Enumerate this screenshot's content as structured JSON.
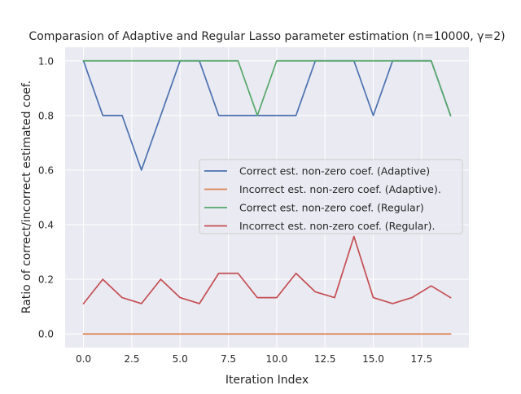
{
  "chart_data": {
    "type": "line",
    "title": "Comparasion of Adaptive and Regular Lasso parameter estimation (n=10000, γ=2)",
    "xlabel": "Iteration Index",
    "ylabel": "Ratio of correct/incorrect estimated coef.",
    "xlim": [
      -0.95,
      19.95
    ],
    "ylim": [
      -0.05,
      1.05
    ],
    "x_ticks": [
      0,
      2.5,
      5,
      7.5,
      10,
      12.5,
      15,
      17.5
    ],
    "x_tick_labels": [
      "0.0",
      "2.5",
      "5.0",
      "7.5",
      "10.0",
      "12.5",
      "15.0",
      "17.5"
    ],
    "y_ticks": [
      0,
      0.2,
      0.4,
      0.6,
      0.8,
      1.0
    ],
    "y_tick_labels": [
      "0.0",
      "0.2",
      "0.4",
      "0.6",
      "0.8",
      "1.0"
    ],
    "grid": true,
    "legend_position": "center-right",
    "x": [
      0,
      1,
      2,
      3,
      4,
      5,
      6,
      7,
      8,
      9,
      10,
      11,
      12,
      13,
      14,
      15,
      16,
      17,
      18,
      19
    ],
    "series": [
      {
        "name": "Correct est. non-zero coef. (Adaptive)",
        "color": "#4c72b0",
        "values": [
          1.0,
          0.8,
          0.8,
          0.6,
          0.8,
          1.0,
          1.0,
          0.8,
          0.8,
          0.8,
          0.8,
          0.8,
          1.0,
          1.0,
          1.0,
          0.8,
          1.0,
          1.0,
          1.0,
          0.8
        ]
      },
      {
        "name": "Incorrect est. non-zero coef. (Adaptive).",
        "color": "#dd8452",
        "values": [
          0,
          0,
          0,
          0,
          0,
          0,
          0,
          0,
          0,
          0,
          0,
          0,
          0,
          0,
          0,
          0,
          0,
          0,
          0,
          0
        ]
      },
      {
        "name": "Correct est. non-zero coef. (Regular)",
        "color": "#55a868",
        "values": [
          1.0,
          1.0,
          1.0,
          1.0,
          1.0,
          1.0,
          1.0,
          1.0,
          1.0,
          0.8,
          1.0,
          1.0,
          1.0,
          1.0,
          1.0,
          1.0,
          1.0,
          1.0,
          1.0,
          0.8
        ]
      },
      {
        "name": "Incorrect est. non-zero coef. (Regular).",
        "color": "#c44e52",
        "values": [
          0.111,
          0.2,
          0.133,
          0.111,
          0.2,
          0.133,
          0.111,
          0.222,
          0.222,
          0.133,
          0.133,
          0.222,
          0.154,
          0.133,
          0.357,
          0.133,
          0.111,
          0.133,
          0.176,
          0.133
        ]
      }
    ]
  }
}
